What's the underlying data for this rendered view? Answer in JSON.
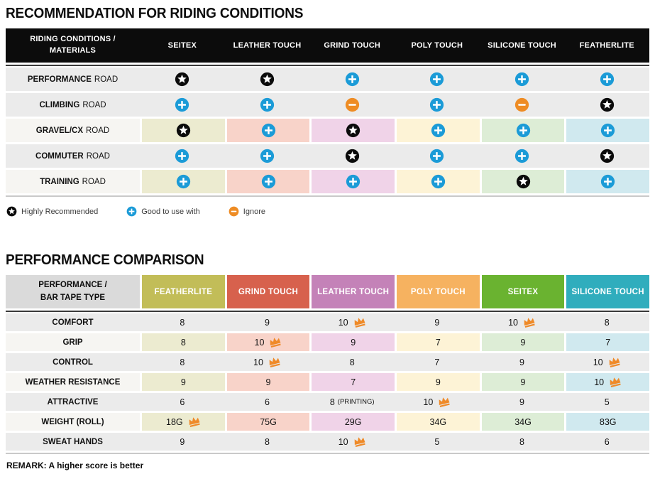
{
  "palette": {
    "row_gray": "#ebebeb",
    "row_label_light": "#f6f5f2",
    "header_black": "#0c0c0c",
    "accent_blue": "#1b9bd7",
    "accent_orange": "#ee8c24",
    "crown_orange": "#ef8a28",
    "tints": [
      "#ecebd0",
      "#f8d3c9",
      "#f0d3e8",
      "#fdf3d6",
      "#ddedd6",
      "#d0e9ef"
    ]
  },
  "section1": {
    "title": "RECOMMENDATION FOR RIDING CONDITIONS",
    "table": {
      "corner_header": "RIDING CONDITIONS /\nMATERIALS",
      "columns": [
        "SEITEX",
        "LEATHER TOUCH",
        "GRIND TOUCH",
        "POLY TOUCH",
        "SILICONE TOUCH",
        "FEATHERLITE"
      ],
      "rows": [
        {
          "label_bold": "PERFORMANCE",
          "label_rest": "ROAD",
          "tinted": false,
          "cells": [
            "star",
            "star",
            "plus",
            "plus",
            "plus",
            "plus"
          ]
        },
        {
          "label_bold": "CLIMBING",
          "label_rest": "ROAD",
          "tinted": false,
          "cells": [
            "plus",
            "plus",
            "minus",
            "plus",
            "minus",
            "star"
          ]
        },
        {
          "label_bold": "GRAVEL/CX",
          "label_rest": "ROAD",
          "tinted": true,
          "cells": [
            "star",
            "plus",
            "star",
            "plus",
            "plus",
            "plus"
          ]
        },
        {
          "label_bold": "COMMUTER",
          "label_rest": "ROAD",
          "tinted": false,
          "cells": [
            "plus",
            "plus",
            "star",
            "plus",
            "plus",
            "star"
          ]
        },
        {
          "label_bold": "TRAINING",
          "label_rest": "ROAD",
          "tinted": true,
          "cells": [
            "plus",
            "plus",
            "plus",
            "plus",
            "star",
            "plus"
          ]
        }
      ]
    },
    "legend": [
      {
        "icon": "star",
        "label": "Highly Recommended"
      },
      {
        "icon": "plus",
        "label": "Good to use with"
      },
      {
        "icon": "minus",
        "label": "Ignore"
      }
    ]
  },
  "section2": {
    "title": "PERFORMANCE COMPARISON",
    "table": {
      "corner_header": "PERFORMANCE /\nBAR TAPE TYPE",
      "columns": [
        {
          "label": "FEATHERLITE",
          "color": "#c2bd58",
          "tint": "#ecebd0"
        },
        {
          "label": "GRIND TOUCH",
          "color": "#d7614d",
          "tint": "#f8d3c9"
        },
        {
          "label": "LEATHER TOUCH",
          "color": "#c482b8",
          "tint": "#f0d3e8"
        },
        {
          "label": "POLY TOUCH",
          "color": "#f6b260",
          "tint": "#fdf3d6"
        },
        {
          "label": "SEITEX",
          "color": "#6ab330",
          "tint": "#ddedd6"
        },
        {
          "label": "SILICONE TOUCH",
          "color": "#30adbd",
          "tint": "#d0e9ef"
        }
      ],
      "rows": [
        {
          "label": "COMFORT",
          "tinted": false,
          "cells": [
            {
              "value": "8"
            },
            {
              "value": "9"
            },
            {
              "value": "10",
              "crown": true
            },
            {
              "value": "9"
            },
            {
              "value": "10",
              "crown": true
            },
            {
              "value": "8"
            }
          ]
        },
        {
          "label": "GRIP",
          "tinted": true,
          "cells": [
            {
              "value": "8"
            },
            {
              "value": "10",
              "crown": true
            },
            {
              "value": "9"
            },
            {
              "value": "7"
            },
            {
              "value": "9"
            },
            {
              "value": "7"
            }
          ]
        },
        {
          "label": "CONTROL",
          "tinted": false,
          "cells": [
            {
              "value": "8"
            },
            {
              "value": "10",
              "crown": true
            },
            {
              "value": "8"
            },
            {
              "value": "7"
            },
            {
              "value": "9"
            },
            {
              "value": "10",
              "crown": true
            }
          ]
        },
        {
          "label": "WEATHER RESISTANCE",
          "tinted": true,
          "cells": [
            {
              "value": "9"
            },
            {
              "value": "9"
            },
            {
              "value": "7"
            },
            {
              "value": "9"
            },
            {
              "value": "9"
            },
            {
              "value": "10",
              "crown": true
            }
          ]
        },
        {
          "label": "ATTRACTIVE",
          "tinted": false,
          "cells": [
            {
              "value": "6"
            },
            {
              "value": "6"
            },
            {
              "value": "8",
              "suffix": "(PRINTING)"
            },
            {
              "value": "10",
              "crown": true
            },
            {
              "value": "9"
            },
            {
              "value": "5"
            }
          ]
        },
        {
          "label": "WEIGHT (ROLL)",
          "tinted": true,
          "cells": [
            {
              "value": "18G",
              "crown": true
            },
            {
              "value": "75G"
            },
            {
              "value": "29G"
            },
            {
              "value": "34G"
            },
            {
              "value": "34G"
            },
            {
              "value": "83G"
            }
          ]
        },
        {
          "label": "SWEAT HANDS",
          "tinted": false,
          "cells": [
            {
              "value": "9"
            },
            {
              "value": "8"
            },
            {
              "value": "10",
              "crown": true
            },
            {
              "value": "5"
            },
            {
              "value": "8"
            },
            {
              "value": "6"
            }
          ]
        }
      ]
    },
    "remark": "REMARK: A higher score is better"
  }
}
